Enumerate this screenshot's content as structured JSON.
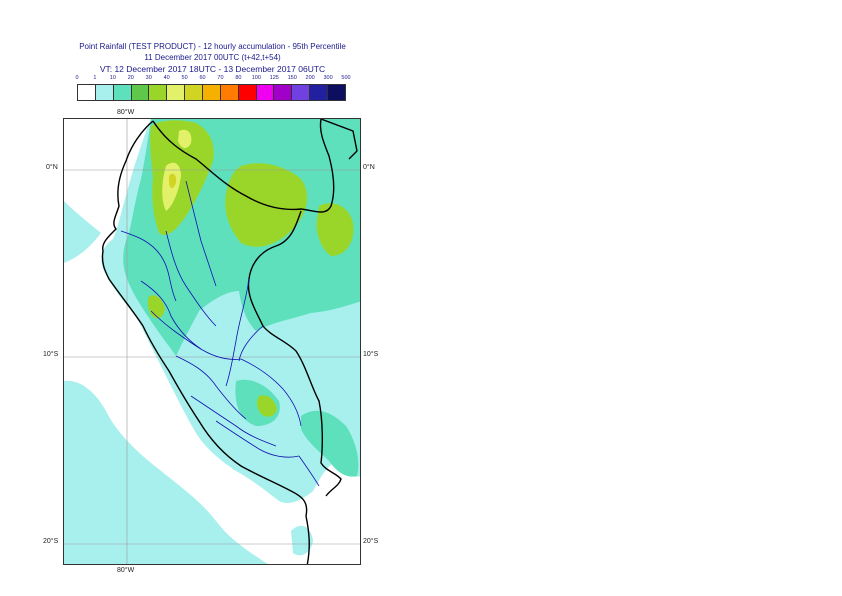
{
  "title": {
    "line1": "Point Rainfall (TEST PRODUCT) - 12 hourly accumulation - 95th Percentile",
    "line2": "11 December 2017 00UTC (t+42,t+54)",
    "line3": "VT: 12 December 2017 18UTC - 13 December 2017 06UTC"
  },
  "legend": {
    "labels": [
      "0",
      "1",
      "10",
      "20",
      "30",
      "40",
      "50",
      "60",
      "70",
      "80",
      "100",
      "125",
      "150",
      "200",
      "300",
      "500"
    ],
    "colors": [
      "#ffffff",
      "#a8f0ee",
      "#5ee0bd",
      "#5fc84a",
      "#9ad62a",
      "#e2f06a",
      "#d2d424",
      "#f6b000",
      "#ff7c00",
      "#ff0000",
      "#f000f0",
      "#a000c8",
      "#7040e0",
      "#2020a0",
      "#0e0e60"
    ]
  },
  "map": {
    "lon_labels": {
      "top": "80°W",
      "bottom": "80°W"
    },
    "lat_labels": {
      "lat0": "0°N",
      "lat10": "10°S",
      "lat20": "20°S"
    }
  }
}
